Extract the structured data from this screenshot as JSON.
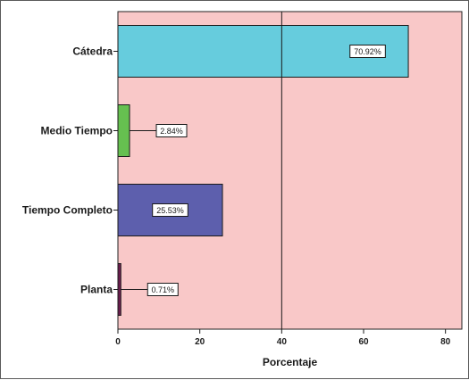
{
  "chart_data": {
    "type": "bar",
    "orientation": "horizontal",
    "categories": [
      "Cátedra",
      "Medio Tiempo",
      "Tiempo Completo",
      "Planta"
    ],
    "values": [
      70.92,
      2.84,
      25.53,
      0.71
    ],
    "data_labels": [
      "70.92%",
      "2.84%",
      "25.53%",
      "0.71%"
    ],
    "bar_colors": [
      "#66ccdd",
      "#66c050",
      "#5d5fad",
      "#6e1d50"
    ],
    "background_color": "#f9c8c8",
    "xlabel": "Porcentaje",
    "ylabel": "",
    "xlim": [
      0,
      84
    ],
    "xticks": [
      0,
      20,
      40,
      60,
      80
    ],
    "reference_line": 40,
    "grid": false,
    "legend": "none"
  }
}
